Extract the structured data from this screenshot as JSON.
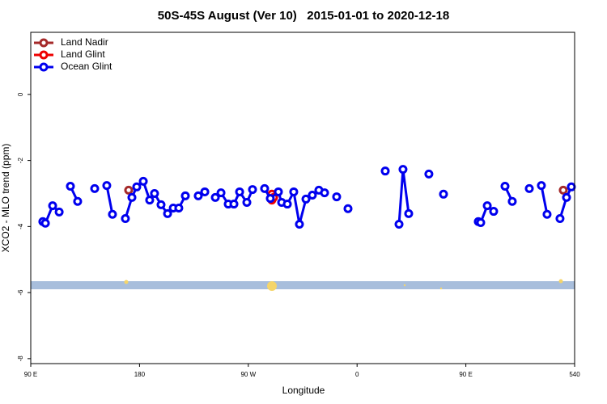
{
  "chart_data": {
    "type": "line",
    "title": "50S-45S August (Ver 10)   2015-01-01 to 2020-12-18",
    "xlabel": "Longitude",
    "ylabel": "XCO2 - MLO trend (ppm)",
    "xlim": [
      90,
      540
    ],
    "ylim": [
      -8.15,
      1.88
    ],
    "xticks": [
      {
        "value": 90,
        "label": "90 E"
      },
      180,
      {
        "value": 270,
        "label": "90 W"
      },
      {
        "value": 360,
        "label": "0"
      },
      {
        "value": 450,
        "label": "90 E"
      },
      540
    ],
    "yticks": [
      0,
      -2,
      -4,
      -6,
      -8
    ],
    "legend": "upper left",
    "series": [
      {
        "name": "Land Nadir",
        "color": "#a52a2a",
        "x": [
          171.0,
          null,
          530.6
        ],
        "values": [
          -2.9,
          null,
          -2.9
        ]
      },
      {
        "name": "Land Glint",
        "color": "#ee0000",
        "x": [
          289.5,
          289.5,
          290.9
        ],
        "values": [
          -3.02,
          -3.2,
          -3.12
        ]
      },
      {
        "name": "Ocean Glint",
        "color": "#0000ee",
        "x": [
          100.0,
          102.1,
          108.1,
          113.5,
          null,
          122.8,
          128.8,
          null,
          142.9,
          null,
          152.9,
          157.6,
          null,
          168.3,
          173.7,
          177.7,
          183.1,
          188.4,
          192.4,
          197.8,
          203.2,
          207.9,
          212.5,
          217.9,
          null,
          228.6,
          234.0,
          null,
          242.7,
          247.4,
          253.4,
          258.1,
          262.8,
          268.8,
          273.5,
          null,
          283.5,
          288.2,
          294.9,
          297.6,
          302.3,
          307.6,
          312.3,
          317.7,
          323.0,
          328.4,
          333.1,
          null,
          343.1,
          null,
          352.5,
          null,
          383.3,
          null,
          394.7,
          398.0,
          402.7,
          null,
          419.4,
          null,
          431.5,
          null,
          460.3,
          462.3,
          467.7,
          473.0,
          null,
          482.4,
          488.4,
          null,
          502.5,
          null,
          512.5,
          517.2,
          null,
          527.9,
          533.3,
          537.3
        ],
        "values": [
          -3.85,
          -3.9,
          -3.37,
          -3.56,
          null,
          -2.78,
          -3.24,
          null,
          -2.85,
          null,
          -2.76,
          -3.63,
          null,
          -3.76,
          -3.12,
          -2.8,
          -2.63,
          -3.2,
          -3.0,
          -3.34,
          -3.61,
          -3.44,
          -3.44,
          -3.07,
          null,
          -3.07,
          -2.95,
          null,
          -3.12,
          -2.98,
          -3.32,
          -3.32,
          -2.95,
          -3.27,
          -2.88,
          null,
          -2.85,
          -3.15,
          -2.95,
          -3.27,
          -3.32,
          -2.95,
          -3.93,
          -3.17,
          -3.05,
          -2.9,
          -2.98,
          null,
          -3.1,
          null,
          -3.46,
          null,
          -2.32,
          null,
          -3.93,
          -2.27,
          -3.61,
          null,
          -2.41,
          null,
          -3.02,
          null,
          -3.85,
          -3.88,
          -3.37,
          -3.54,
          null,
          -2.78,
          -3.24,
          null,
          -2.85,
          null,
          -2.76,
          -3.63,
          null,
          -3.76,
          -3.12,
          -2.8
        ]
      }
    ]
  }
}
